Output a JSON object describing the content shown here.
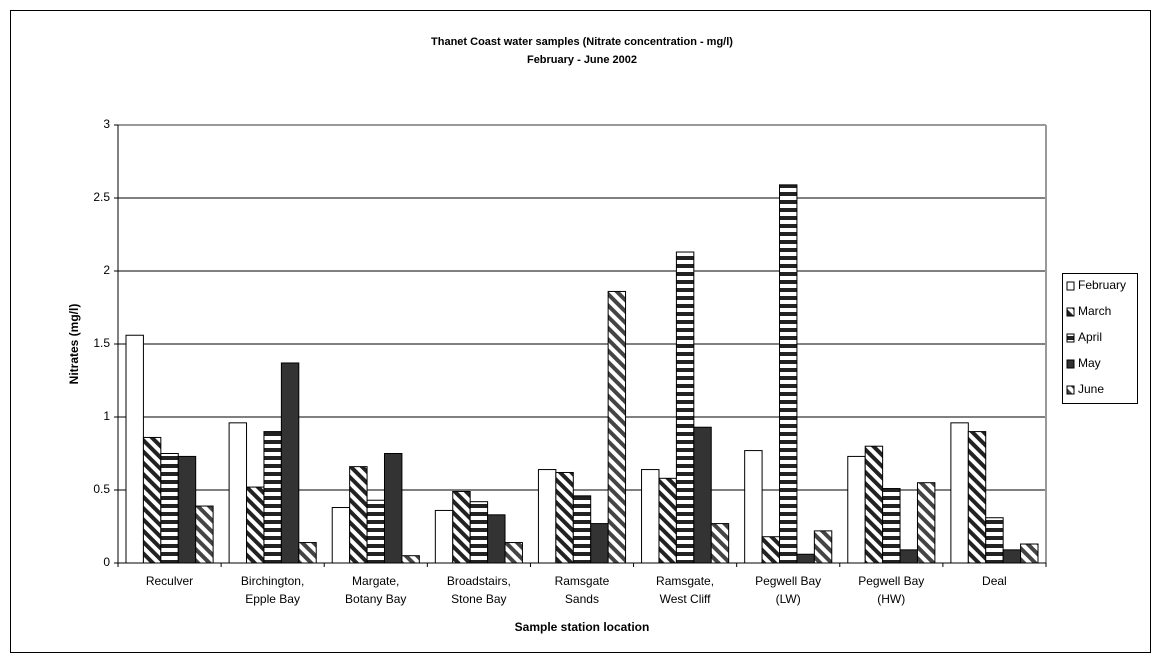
{
  "chart_data": {
    "type": "bar",
    "title": "Thanet Coast water samples (Nitrate concentration - mg/l)",
    "subtitle": "February - June 2002",
    "x_label": "Sample station location",
    "y_label": "Nitrates (mg/l)",
    "categories": [
      "Reculver",
      "Birchington,\nEpple Bay",
      "Margate,\nBotany Bay",
      "Broadstairs,\nStone Bay",
      "Ramsgate\nSands",
      "Ramsgate,\nWest Cliff",
      "Pegwell Bay\n(LW)",
      "Pegwell Bay\n(HW)",
      "Deal"
    ],
    "series": [
      {
        "name": "February",
        "color": "#ffffff",
        "pattern": "none",
        "values": [
          1.56,
          0.96,
          0.38,
          0.36,
          0.64,
          0.64,
          0.77,
          0.73,
          0.96
        ]
      },
      {
        "name": "March",
        "color": "#222222",
        "pattern": "diagonal",
        "values": [
          0.86,
          0.52,
          0.66,
          0.49,
          0.62,
          0.58,
          0.18,
          0.8,
          0.9
        ]
      },
      {
        "name": "April",
        "color": "#222222",
        "pattern": "horizontal",
        "values": [
          0.75,
          0.9,
          0.43,
          0.42,
          0.46,
          2.13,
          2.59,
          0.51,
          0.31
        ]
      },
      {
        "name": "May",
        "color": "#333333",
        "pattern": "none",
        "values": [
          0.73,
          1.37,
          0.75,
          0.33,
          0.27,
          0.93,
          0.06,
          0.09,
          0.09
        ]
      },
      {
        "name": "June",
        "color": "#444444",
        "pattern": "diagonal",
        "values": [
          0.39,
          0.14,
          0.05,
          0.14,
          1.86,
          0.27,
          0.22,
          0.55,
          0.13
        ]
      }
    ],
    "ylim": [
      0,
      3
    ],
    "yticks": [
      0,
      0.5,
      1,
      1.5,
      2,
      2.5,
      3
    ],
    "grid": true,
    "legend": "right"
  }
}
